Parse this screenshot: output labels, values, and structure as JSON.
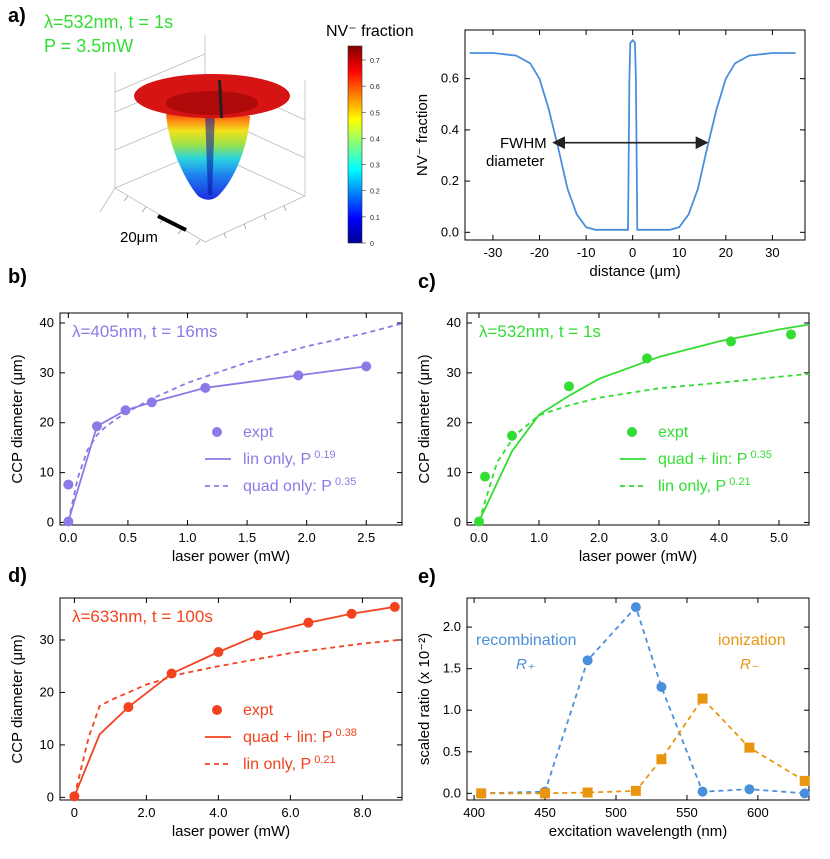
{
  "panels": {
    "a": {
      "label": "a)",
      "surface": {
        "annotation_line1": "λ=532nm, t = 1s",
        "annotation_line2": "P = 3.5mW",
        "annotation_color": "#33dd33",
        "scale_bar_label": "20μm",
        "colorbar_title": "NV⁻ fraction",
        "colorbar_ticks": [
          "0",
          "0.1",
          "0.2",
          "0.3",
          "0.4",
          "0.5",
          "0.6",
          "0.7"
        ],
        "colormap": "jet"
      }
    },
    "b": {
      "label": "b)"
    },
    "c": {
      "label": "c)"
    },
    "d": {
      "label": "d)"
    },
    "e": {
      "label": "e)"
    }
  },
  "chart_data": [
    {
      "id": "a-profile",
      "type": "line",
      "xlabel": "distance (μm)",
      "ylabel": "NV⁻ fraction",
      "xlim": [
        -36,
        37
      ],
      "ylim": [
        -0.03,
        0.79
      ],
      "xticks": [
        -30,
        -20,
        -10,
        0,
        10,
        20,
        30
      ],
      "yticks": [
        0.0,
        0.2,
        0.4,
        0.6
      ],
      "grid": false,
      "color": "#4a8fdb",
      "annotation": {
        "text_line1": "FWHM",
        "text_line2": "diameter",
        "arrow_from": -17,
        "arrow_to": 16,
        "arrow_y": 0.35
      },
      "x": [
        -35,
        -30,
        -25,
        -22,
        -20,
        -18,
        -16,
        -14,
        -12,
        -10,
        -8,
        -6,
        -3,
        -1.5,
        -1.0,
        -0.7,
        -0.5,
        0,
        0.5,
        0.7,
        1.0,
        1.5,
        3,
        6,
        8,
        10,
        12,
        14,
        16,
        18,
        20,
        22,
        25,
        30,
        35
      ],
      "y": [
        0.7,
        0.7,
        0.69,
        0.66,
        0.6,
        0.48,
        0.33,
        0.17,
        0.07,
        0.02,
        0.01,
        0.01,
        0.01,
        0.01,
        0.01,
        0.6,
        0.74,
        0.75,
        0.74,
        0.6,
        0.01,
        0.01,
        0.01,
        0.01,
        0.01,
        0.02,
        0.07,
        0.17,
        0.33,
        0.48,
        0.6,
        0.66,
        0.69,
        0.7,
        0.7
      ]
    },
    {
      "id": "b",
      "type": "line",
      "title": "λ=405nm, t = 16ms",
      "title_color": "#8a7be6",
      "xlabel": "laser power (mW)",
      "ylabel": "CCP diameter (μm)",
      "xlim": [
        -0.07,
        2.8
      ],
      "ylim": [
        -0.5,
        42
      ],
      "xticks": [
        "0.0",
        "0.5",
        "1.0",
        "1.5",
        "2.0",
        "2.5"
      ],
      "yticks": [
        0,
        10,
        20,
        30,
        40
      ],
      "grid": false,
      "legend": "center-right",
      "series": [
        {
          "name": "expt",
          "style": "marker",
          "color": "#8a7be6",
          "x": [
            0.0,
            0.0,
            0.24,
            0.48,
            0.7,
            1.15,
            1.93,
            2.5
          ],
          "y": [
            0.2,
            7.6,
            19.3,
            22.5,
            24.1,
            27.0,
            29.5,
            31.3
          ]
        },
        {
          "name": "lin only, P",
          "exp": "0.19",
          "style": "solid",
          "color": "#8a7be6",
          "x": [
            0.0,
            0.24,
            0.48,
            0.7,
            1.15,
            1.93,
            2.5
          ],
          "y": [
            0.2,
            19.3,
            22.5,
            24.1,
            27.0,
            29.5,
            31.3
          ]
        },
        {
          "name": "quad only: P",
          "exp": "0.35",
          "style": "dashed",
          "color": "#8a7be6",
          "x": [
            0.0,
            0.08,
            0.16,
            0.24,
            0.3,
            0.4,
            0.5,
            0.7,
            1.0,
            1.5,
            2.0,
            2.5,
            2.8
          ],
          "y": [
            0.2,
            9.0,
            14.5,
            17.5,
            18.9,
            20.7,
            22.2,
            24.8,
            28.0,
            32.1,
            35.3,
            38.0,
            39.9
          ]
        }
      ]
    },
    {
      "id": "c",
      "type": "line",
      "title": "λ=532nm, t = 1s",
      "title_color": "#33dd33",
      "xlabel": "laser power (mW)",
      "ylabel": "CCP diameter (μm)",
      "xlim": [
        -0.2,
        5.5
      ],
      "ylim": [
        -0.5,
        42
      ],
      "xticks": [
        "0.0",
        "1.0",
        "2.0",
        "3.0",
        "4.0",
        "5.0"
      ],
      "yticks": [
        0,
        10,
        20,
        30,
        40
      ],
      "grid": false,
      "legend": "center-right",
      "series": [
        {
          "name": "expt",
          "style": "marker",
          "color": "#33dd33",
          "x": [
            0.0,
            0.1,
            0.55,
            1.5,
            2.8,
            4.2,
            5.2
          ],
          "y": [
            0.2,
            9.2,
            17.4,
            27.3,
            32.9,
            36.3,
            37.7
          ]
        },
        {
          "name": "quad + lin: P",
          "exp": "0.35",
          "style": "solid",
          "color": "#33dd33",
          "x": [
            0.0,
            0.55,
            1.0,
            1.5,
            2.0,
            3.0,
            4.0,
            5.0,
            5.5
          ],
          "y": [
            0.2,
            14.3,
            21.6,
            25.4,
            28.8,
            33.2,
            36.3,
            38.7,
            39.7
          ]
        },
        {
          "name": "lin only, P",
          "exp": "0.21",
          "style": "dashed",
          "color": "#33dd33",
          "x": [
            0.0,
            0.3,
            0.6,
            1.0,
            1.5,
            2.0,
            3.0,
            4.0,
            5.0,
            5.5
          ],
          "y": [
            0.2,
            12.0,
            17.5,
            21.5,
            23.5,
            25.0,
            26.9,
            28.0,
            29.2,
            29.8
          ]
        }
      ]
    },
    {
      "id": "d",
      "type": "line",
      "title": "λ=633nm, t = 100s",
      "title_color": "#f2421f",
      "xlabel": "laser power (mW)",
      "ylabel": "CCP diameter (μm)",
      "xlim": [
        -0.4,
        9.1
      ],
      "ylim": [
        -0.5,
        38
      ],
      "xticks": [
        "0",
        "2.0",
        "4.0",
        "6.0",
        "8.0"
      ],
      "xtick_values": [
        0,
        2,
        4,
        6,
        8
      ],
      "yticks": [
        0,
        10,
        20,
        30
      ],
      "grid": false,
      "legend": "center-right",
      "series": [
        {
          "name": "expt",
          "style": "marker",
          "color": "#f2421f",
          "x": [
            0.0,
            1.5,
            2.7,
            4.0,
            5.1,
            6.5,
            7.7,
            8.9
          ],
          "y": [
            0.2,
            17.2,
            23.6,
            27.7,
            30.9,
            33.3,
            35.0,
            36.3
          ]
        },
        {
          "name": "quad + lin: P",
          "exp": "0.38",
          "style": "solid",
          "color": "#f2421f",
          "x": [
            0.0,
            0.7,
            1.5,
            2.7,
            4.0,
            5.1,
            6.5,
            7.7,
            8.9
          ],
          "y": [
            0.2,
            12.0,
            17.2,
            23.6,
            27.7,
            30.9,
            33.3,
            35.0,
            36.3
          ]
        },
        {
          "name": "lin only, P",
          "exp": "0.21",
          "style": "dashed",
          "color": "#f2421f",
          "x": [
            0.0,
            0.4,
            0.7,
            1.0,
            2.0,
            3.0,
            4.0,
            6.0,
            8.0,
            9.0
          ],
          "y": [
            0.2,
            11.5,
            17.4,
            18.5,
            21.5,
            23.6,
            25.0,
            27.5,
            29.3,
            30.0
          ]
        }
      ]
    },
    {
      "id": "e",
      "type": "line",
      "xlabel": "excitation wavelength (nm)",
      "ylabel": "scaled ratio (x 10⁻²)",
      "xlim": [
        395,
        636
      ],
      "ylim": [
        -0.08,
        2.35
      ],
      "xticks": [
        400,
        450,
        500,
        550,
        600
      ],
      "yticks": [
        "0.0",
        "0.5",
        "1.0",
        "1.5",
        "2.0"
      ],
      "grid": false,
      "series": [
        {
          "name": "recombination",
          "sub": "R₊",
          "style": "dashed-marker",
          "marker": "circle",
          "color": "#4a8fdb",
          "x": [
            405,
            450,
            480,
            514,
            532,
            561,
            594,
            633
          ],
          "y": [
            0.0,
            0.02,
            1.6,
            2.24,
            1.28,
            0.02,
            0.05,
            0.0
          ]
        },
        {
          "name": "ionization",
          "sub": "R₋",
          "style": "dashed-marker",
          "marker": "square",
          "color": "#e8960f",
          "x": [
            405,
            450,
            480,
            514,
            532,
            561,
            594,
            633
          ],
          "y": [
            0.0,
            0.0,
            0.01,
            0.03,
            0.41,
            1.14,
            0.55,
            0.15
          ]
        }
      ]
    }
  ]
}
